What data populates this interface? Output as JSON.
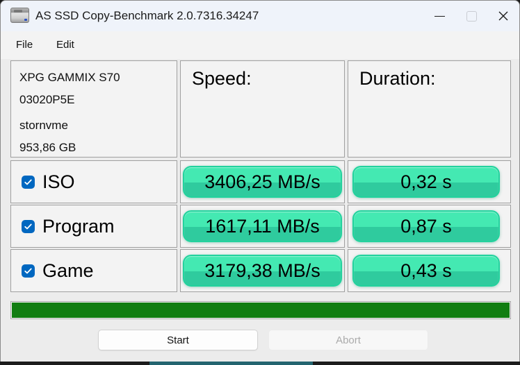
{
  "window": {
    "title": "AS SSD Copy-Benchmark 2.0.7316.34247"
  },
  "menu": {
    "items": [
      {
        "label": "File"
      },
      {
        "label": "Edit"
      }
    ]
  },
  "drive_info": {
    "model": "XPG GAMMIX S70",
    "serial": "03020P5E",
    "driver": "stornvme",
    "capacity": "953,86 GB"
  },
  "table": {
    "headers": {
      "speed": "Speed:",
      "duration": "Duration:"
    },
    "rows": [
      {
        "label": "ISO",
        "checked": true,
        "speed": "3406,25 MB/s",
        "duration": "0,32 s"
      },
      {
        "label": "Program",
        "checked": true,
        "speed": "1617,11 MB/s",
        "duration": "0,87 s"
      },
      {
        "label": "Game",
        "checked": true,
        "speed": "3179,38 MB/s",
        "duration": "0,43 s"
      }
    ]
  },
  "progress": {
    "percent": 100
  },
  "buttons": {
    "start": "Start",
    "abort": "Abort"
  },
  "colors": {
    "checkbox_accent": "#0067c0",
    "pill_green_top": "#44e9b2",
    "pill_green_bottom": "#2fcb9e",
    "pill_border": "#22d29d",
    "progress_green": "#117d11",
    "titlebar_bg": "#eff3fa"
  }
}
